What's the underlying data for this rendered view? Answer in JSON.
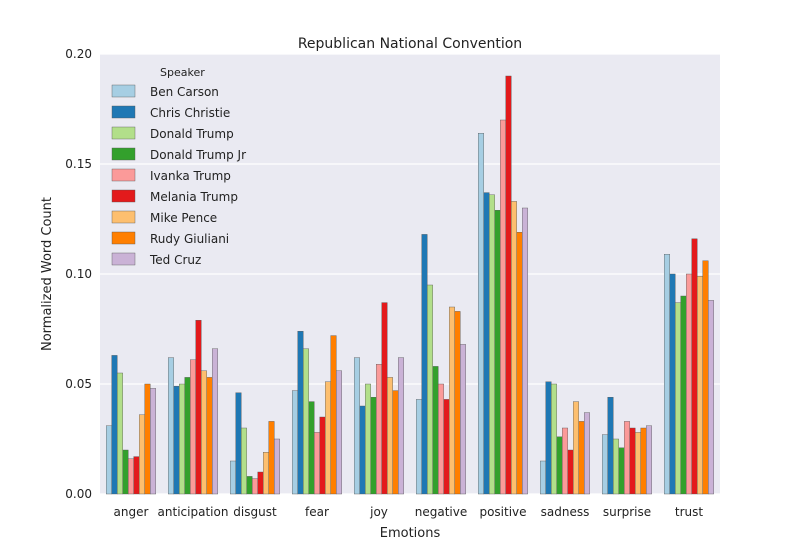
{
  "chart_data": {
    "type": "bar",
    "title": "Republican National Convention",
    "xlabel": "Emotions",
    "ylabel": "Normalized Word Count",
    "ylim": [
      0,
      0.2
    ],
    "yticks": [
      "0.00",
      "0.05",
      "0.10",
      "0.15",
      "0.20"
    ],
    "ytick_values": [
      0,
      0.05,
      0.1,
      0.15,
      0.2
    ],
    "grid": true,
    "legend_title": "Speaker",
    "legend_position": "top-left",
    "categories": [
      "anger",
      "anticipation",
      "disgust",
      "fear",
      "joy",
      "negative",
      "positive",
      "sadness",
      "surprise",
      "trust"
    ],
    "series": [
      {
        "name": "Ben Carson",
        "color": "#a6cee3",
        "values": [
          0.031,
          0.062,
          0.015,
          0.047,
          0.062,
          0.043,
          0.164,
          0.015,
          0.027,
          0.109
        ]
      },
      {
        "name": "Chris Christie",
        "color": "#1f78b4",
        "values": [
          0.063,
          0.049,
          0.046,
          0.074,
          0.04,
          0.118,
          0.137,
          0.051,
          0.044,
          0.1
        ]
      },
      {
        "name": "Donald Trump",
        "color": "#b2df8a",
        "values": [
          0.055,
          0.05,
          0.03,
          0.066,
          0.05,
          0.095,
          0.136,
          0.05,
          0.025,
          0.087
        ]
      },
      {
        "name": "Donald Trump Jr",
        "color": "#33a02c",
        "values": [
          0.02,
          0.053,
          0.008,
          0.042,
          0.044,
          0.058,
          0.129,
          0.026,
          0.021,
          0.09
        ]
      },
      {
        "name": "Ivanka Trump",
        "color": "#fb9a99",
        "values": [
          0.016,
          0.061,
          0.007,
          0.028,
          0.059,
          0.05,
          0.17,
          0.03,
          0.033,
          0.1
        ]
      },
      {
        "name": "Melania Trump",
        "color": "#e31a1c",
        "values": [
          0.017,
          0.079,
          0.01,
          0.035,
          0.087,
          0.043,
          0.19,
          0.02,
          0.03,
          0.116
        ]
      },
      {
        "name": "Mike Pence",
        "color": "#fdbf6f",
        "values": [
          0.036,
          0.056,
          0.019,
          0.051,
          0.053,
          0.085,
          0.133,
          0.042,
          0.028,
          0.099
        ]
      },
      {
        "name": "Rudy Giuliani",
        "color": "#ff7f00",
        "values": [
          0.05,
          0.053,
          0.033,
          0.072,
          0.047,
          0.083,
          0.119,
          0.033,
          0.03,
          0.106
        ]
      },
      {
        "name": "Ted Cruz",
        "color": "#cab2d6",
        "values": [
          0.048,
          0.066,
          0.025,
          0.056,
          0.062,
          0.068,
          0.13,
          0.037,
          0.031,
          0.088
        ]
      }
    ]
  }
}
